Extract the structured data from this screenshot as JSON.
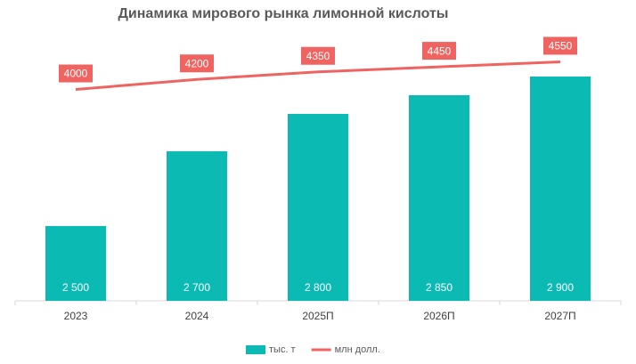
{
  "chart_data": {
    "type": "bar_line",
    "title": "Динамика мирового рынка лимонной кислоты",
    "categories": [
      "2023",
      "2024",
      "2025П",
      "2026П",
      "2027П"
    ],
    "ylim": [
      2300,
      3000
    ],
    "y2lim": [
      -200,
      5000
    ],
    "legend": "bottom",
    "series": [
      {
        "name": "тыс. т",
        "type": "bar",
        "color": "#0bbbb3",
        "values": [
          2500,
          2700,
          2800,
          2850,
          2900
        ],
        "value_labels": [
          "2 500",
          "2 700",
          "2 800",
          "2 850",
          "2 900"
        ]
      },
      {
        "name": "млн долл.",
        "type": "line",
        "axis": "y2",
        "color": "#ef6461",
        "values": [
          4000,
          4200,
          4350,
          4450,
          4550
        ]
      }
    ]
  }
}
